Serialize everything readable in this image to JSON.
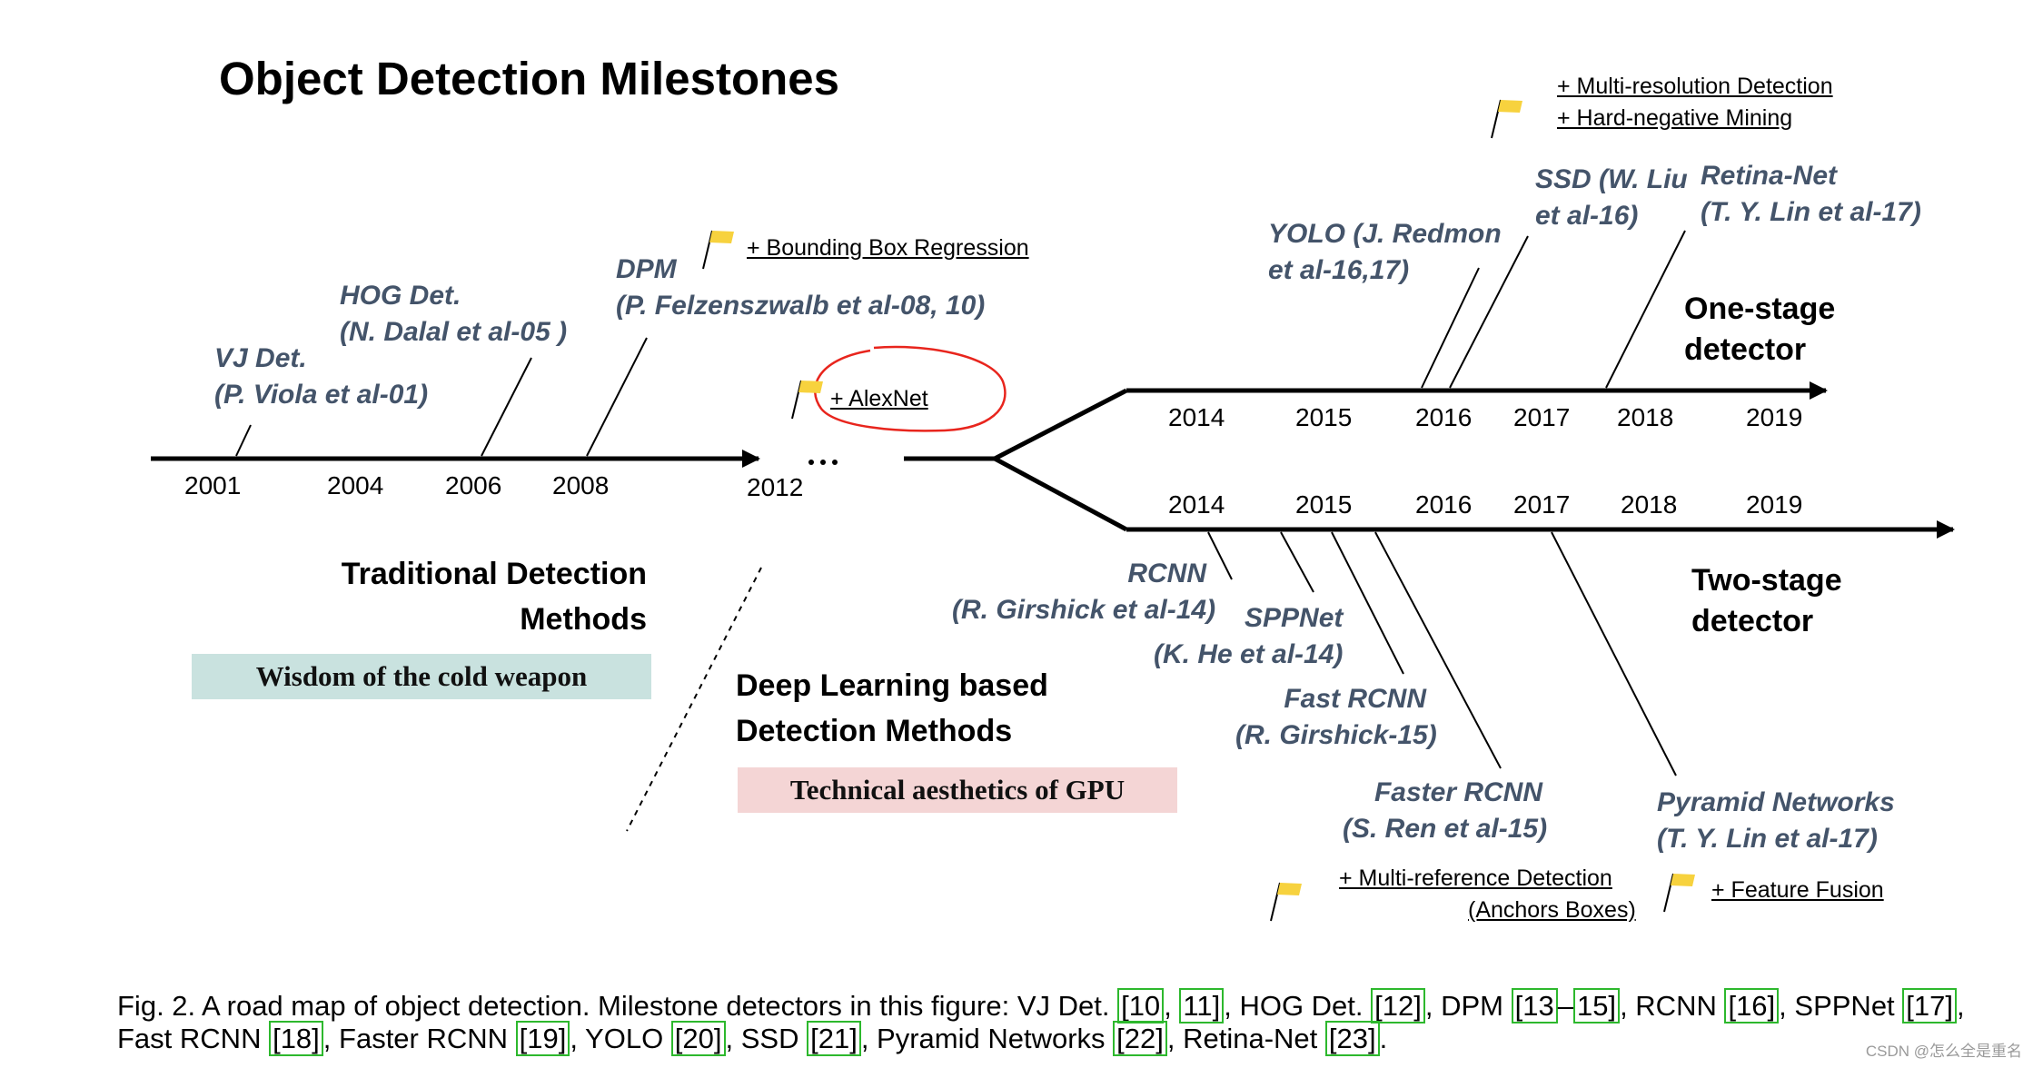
{
  "title": "Object Detection Milestones",
  "left_heading": [
    "Traditional Detection",
    "Methods"
  ],
  "left_box": "Wisdom of the cold weapon",
  "center_heading": [
    "Deep Learning based",
    "Detection Methods"
  ],
  "center_box": "Technical aesthetics of GPU",
  "one_stage_label": [
    "One-stage",
    "detector"
  ],
  "two_stage_label": [
    "Two-stage",
    "detector"
  ],
  "traditional_years": [
    "2001",
    "2004",
    "2006",
    "2008",
    "2012"
  ],
  "ellipsis": "…",
  "one_stage_years": [
    "2014",
    "2015",
    "2016",
    "2017",
    "2018",
    "2019"
  ],
  "two_stage_years": [
    "2014",
    "2015",
    "2016",
    "2017",
    "2018",
    "2019"
  ],
  "traditional_detectors": [
    {
      "name": "VJ Det.",
      "cite": "(P. Viola et al-01)"
    },
    {
      "name": "HOG Det.",
      "cite": "(N. Dalal et al-05 )"
    },
    {
      "name": "DPM",
      "cite": "(P. Felzenszwalb et al-08, 10)"
    }
  ],
  "one_stage_detectors": [
    {
      "name": "YOLO (J. Redmon",
      "cite": "et al-16,17)"
    },
    {
      "name": "SSD (W. Liu",
      "cite": "et al-16)"
    },
    {
      "name": "Retina-Net",
      "cite": "(T. Y. Lin et al-17)"
    }
  ],
  "two_stage_detectors": [
    {
      "name": "RCNN",
      "cite": "(R. Girshick et al-14)"
    },
    {
      "name": "SPPNet",
      "cite": "(K. He et al-14)"
    },
    {
      "name": "Fast RCNN",
      "cite": "(R. Girshick-15)"
    },
    {
      "name": "Faster RCNN",
      "cite": "(S. Ren et al-15)"
    },
    {
      "name": "Pyramid Networks",
      "cite": "(T. Y. Lin et al-17)"
    }
  ],
  "annotations": {
    "bbox_regression": "+ Bounding Box Regression",
    "alexnet": "+ AlexNet",
    "multi_resolution": "+ Multi-resolution Detection",
    "hard_negative": "+ Hard-negative Mining",
    "multi_reference": "+ Multi-reference Detection",
    "anchors": "(Anchors Boxes)",
    "feature_fusion": "+ Feature Fusion"
  },
  "caption": {
    "line1_parts": [
      "Fig. 2.  A road map of object detection. Milestone detectors in this figure: VJ Det. ",
      "[10",
      ", ",
      "11]",
      ", HOG Det. ",
      "[12]",
      ", DPM ",
      "[13",
      "–",
      "15]",
      ", RCNN ",
      "[16]",
      ", SPPNet ",
      "[17]",
      ","
    ],
    "line2_parts": [
      "Fast RCNN ",
      "[18]",
      ", Faster RCNN ",
      "[19]",
      ", YOLO ",
      "[20]",
      ", SSD ",
      "[21]",
      ", Pyramid Networks ",
      "[22]",
      ", Retina-Net ",
      "[23]",
      "."
    ]
  },
  "watermark": "CSDN @怎么全是重名",
  "colors": {
    "label_italic": "#44546a",
    "box_left_bg": "#c9e2df",
    "box_center_bg": "#f4d5d5",
    "flag": "#f7d23e",
    "alexnet_circle": "#e8251d",
    "ref_box": "#2db82d"
  },
  "icons": [
    "flag-icon"
  ]
}
